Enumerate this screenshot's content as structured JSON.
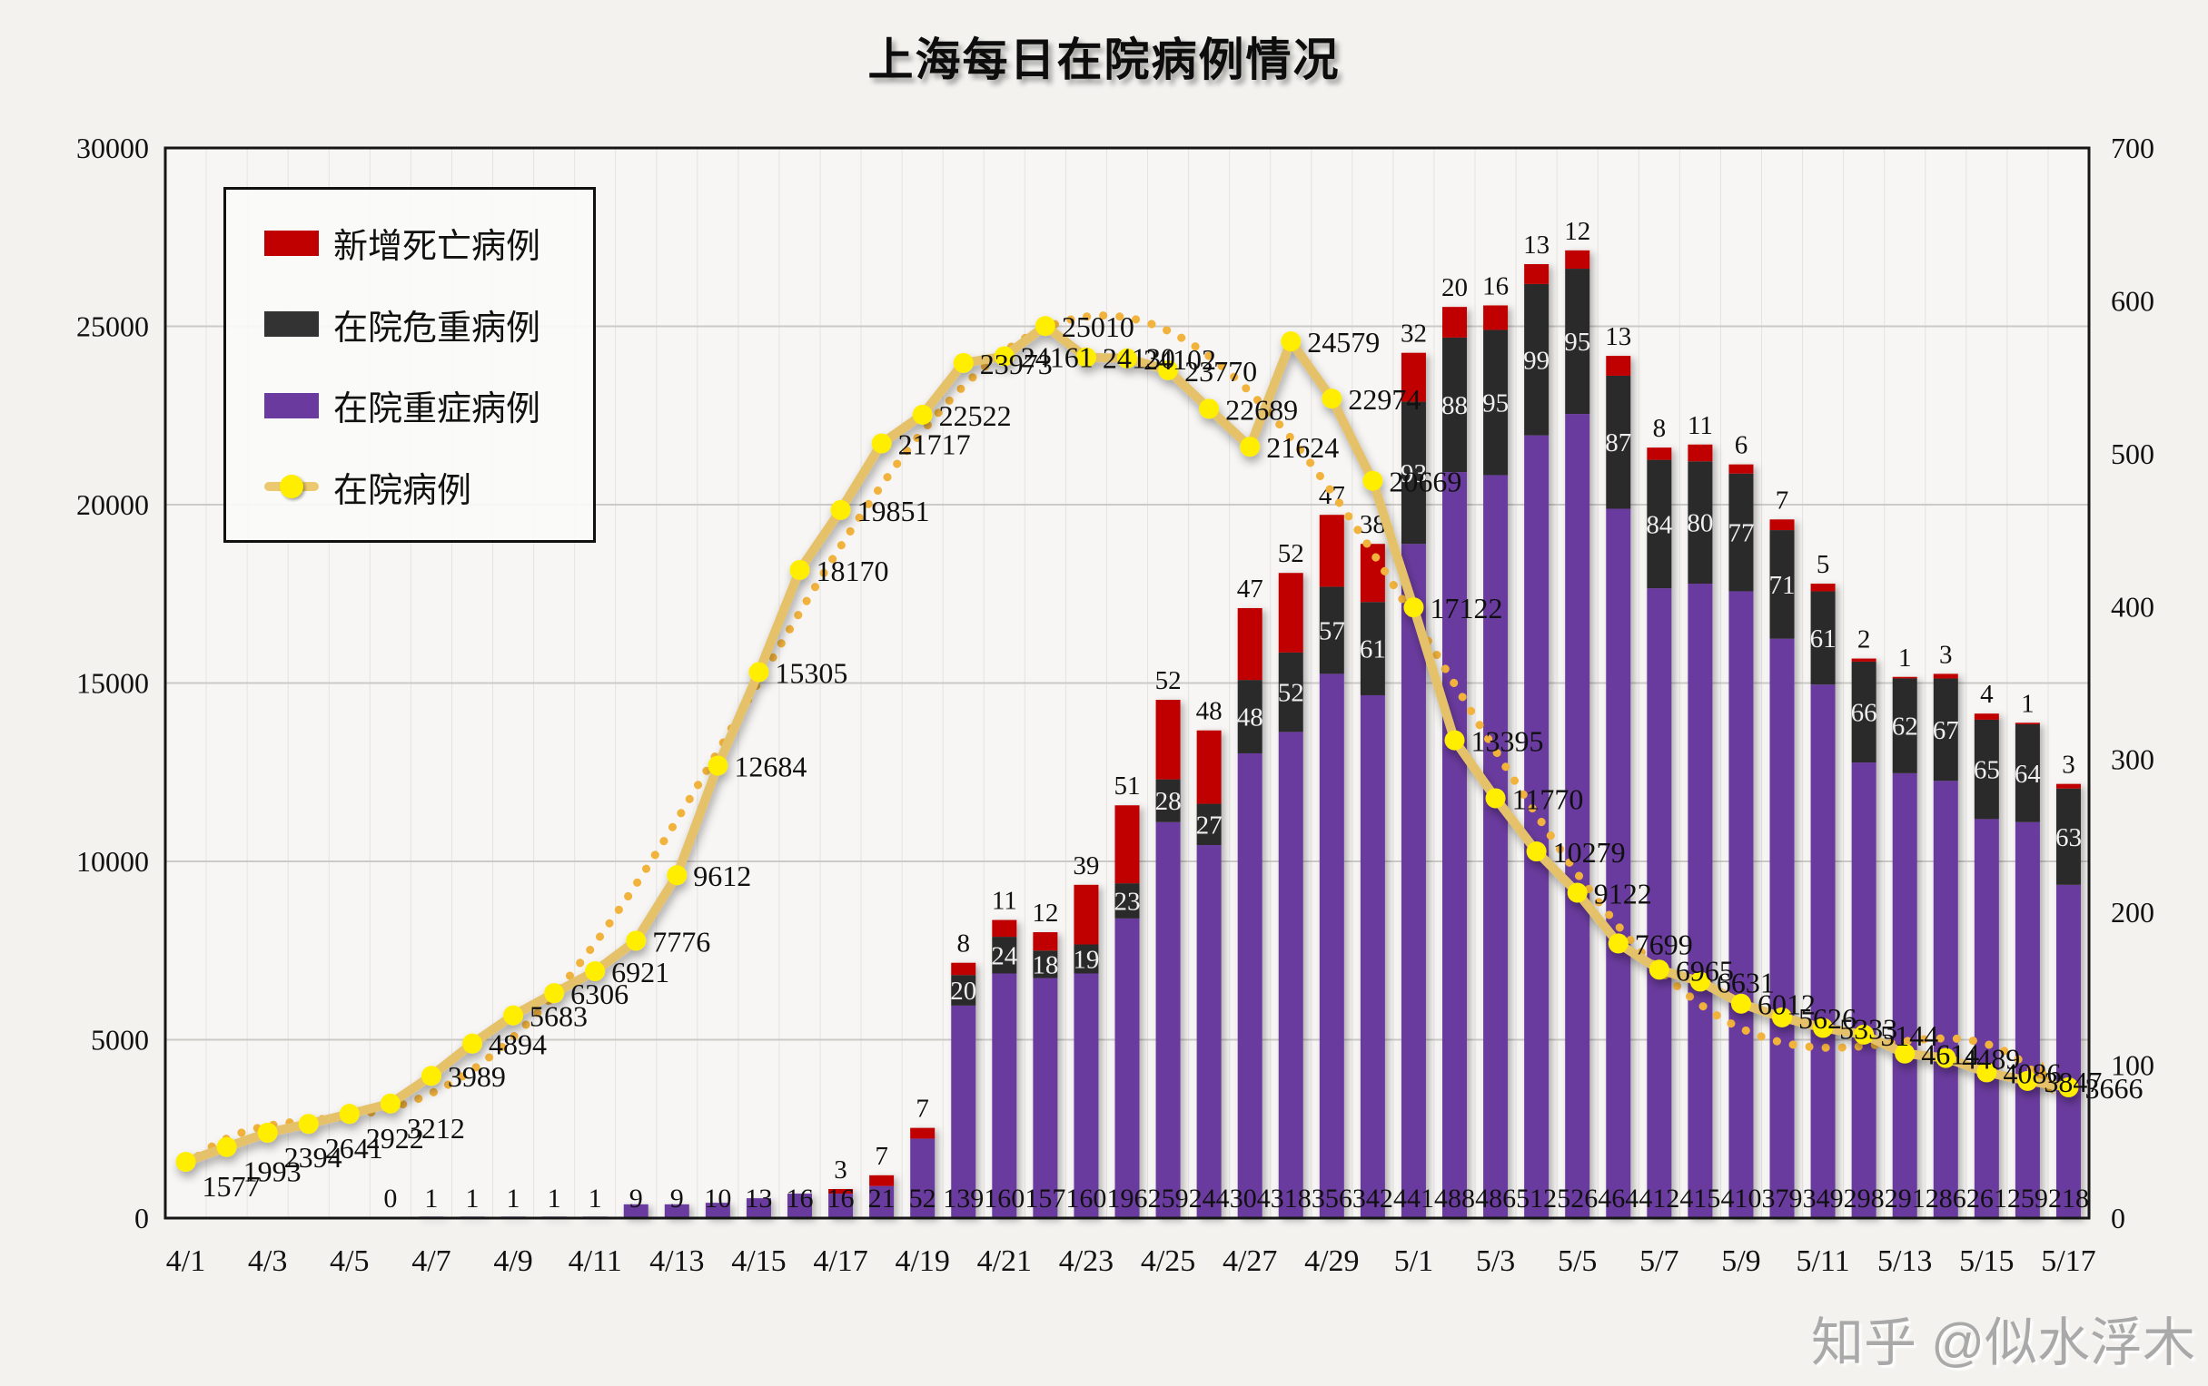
{
  "title": "上海每日在院病例情况",
  "watermark": "知乎 @似水浮木",
  "legend": {
    "position": "top-left",
    "items": [
      {
        "label": "新增死亡病例",
        "color": "#c00000",
        "swatch": "rect"
      },
      {
        "label": "在院危重病例",
        "color": "#333333",
        "swatch": "rect"
      },
      {
        "label": "在院重症病例",
        "color": "#6a3a9e",
        "swatch": "rect"
      },
      {
        "label": "在院病例",
        "color": "#ecc96f",
        "swatch": "line",
        "marker_color": "#ffee00"
      }
    ]
  },
  "chart_data": {
    "type": "bar",
    "subtype": "stacked-bars-with-line",
    "grid": true,
    "legend_position": "top-left",
    "left_axis_range": [
      0,
      30000
    ],
    "right_axis_range": [
      0,
      700
    ],
    "left_ticks": [
      0,
      5000,
      10000,
      15000,
      20000,
      25000,
      30000
    ],
    "right_ticks": [
      0,
      100,
      200,
      300,
      400,
      500,
      600,
      700
    ],
    "x_tick_labels": [
      "4/1",
      "4/3",
      "4/5",
      "4/7",
      "4/9",
      "4/11",
      "4/13",
      "4/15",
      "4/17",
      "4/19",
      "4/21",
      "4/23",
      "4/25",
      "4/27",
      "4/29",
      "5/1",
      "5/3",
      "5/5",
      "5/7",
      "5/9",
      "5/11",
      "5/13",
      "5/15",
      "5/17"
    ],
    "categories": [
      "4/1",
      "4/2",
      "4/3",
      "4/4",
      "4/5",
      "4/6",
      "4/7",
      "4/8",
      "4/9",
      "4/10",
      "4/11",
      "4/12",
      "4/13",
      "4/14",
      "4/15",
      "4/16",
      "4/17",
      "4/18",
      "4/19",
      "4/20",
      "4/21",
      "4/22",
      "4/23",
      "4/24",
      "4/25",
      "4/26",
      "4/27",
      "4/28",
      "4/29",
      "4/30",
      "5/1",
      "5/2",
      "5/3",
      "5/4",
      "5/5",
      "5/6",
      "5/7",
      "5/8",
      "5/9",
      "5/10",
      "5/11",
      "5/12",
      "5/13",
      "5/14",
      "5/15",
      "5/16",
      "5/17"
    ],
    "series": [
      {
        "key": "deaths",
        "name": "新增死亡病例",
        "type": "bar",
        "stack": "s1",
        "axis": "right",
        "color": "#c00000",
        "values": [
          null,
          null,
          null,
          null,
          null,
          null,
          null,
          null,
          null,
          null,
          null,
          null,
          null,
          null,
          null,
          null,
          3,
          7,
          7,
          8,
          11,
          12,
          39,
          51,
          52,
          48,
          47,
          52,
          47,
          38,
          32,
          20,
          16,
          13,
          12,
          13,
          8,
          11,
          6,
          7,
          5,
          2,
          1,
          3,
          4,
          1,
          3
        ]
      },
      {
        "key": "critical",
        "name": "在院危重病例",
        "type": "bar",
        "stack": "s1",
        "axis": "right",
        "color": "#2b2b2b",
        "values": [
          null,
          null,
          null,
          null,
          null,
          null,
          null,
          null,
          null,
          null,
          null,
          null,
          null,
          null,
          null,
          null,
          null,
          null,
          null,
          20,
          24,
          18,
          19,
          23,
          28,
          27,
          48,
          52,
          57,
          61,
          93,
          88,
          95,
          99,
          95,
          87,
          84,
          80,
          77,
          71,
          61,
          66,
          62,
          67,
          65,
          64,
          63
        ]
      },
      {
        "key": "severe",
        "name": "在院重症病例",
        "type": "bar",
        "stack": "s1",
        "axis": "right",
        "color": "#6a3a9e",
        "values": [
          null,
          null,
          null,
          null,
          null,
          0,
          1,
          1,
          1,
          1,
          1,
          9,
          9,
          10,
          13,
          16,
          16,
          21,
          52,
          139,
          160,
          157,
          160,
          196,
          259,
          244,
          304,
          318,
          356,
          342,
          441,
          488,
          486,
          512,
          526,
          464,
          412,
          415,
          410,
          379,
          349,
          298,
          291,
          286,
          261,
          259,
          218
        ]
      },
      {
        "key": "inpatient",
        "name": "在院病例",
        "type": "line",
        "axis": "left",
        "color": "#e5c269",
        "marker_color": "#ffee00",
        "values": [
          1577,
          1993,
          2394,
          2641,
          2922,
          3212,
          3989,
          4894,
          5683,
          6306,
          6921,
          7776,
          9612,
          12684,
          15305,
          18170,
          19851,
          21717,
          22522,
          23973,
          24161,
          25010,
          24130,
          24102,
          23770,
          22689,
          21624,
          24579,
          22974,
          20669,
          17122,
          13395,
          11770,
          10279,
          9122,
          7699,
          6965,
          6631,
          6012,
          5626,
          5333,
          5144,
          4614,
          4489,
          4086,
          3847,
          3666
        ]
      }
    ],
    "trendline": {
      "for": "inpatient",
      "style": "dotted",
      "color": "#f2b33d",
      "end_arrow": true
    }
  }
}
